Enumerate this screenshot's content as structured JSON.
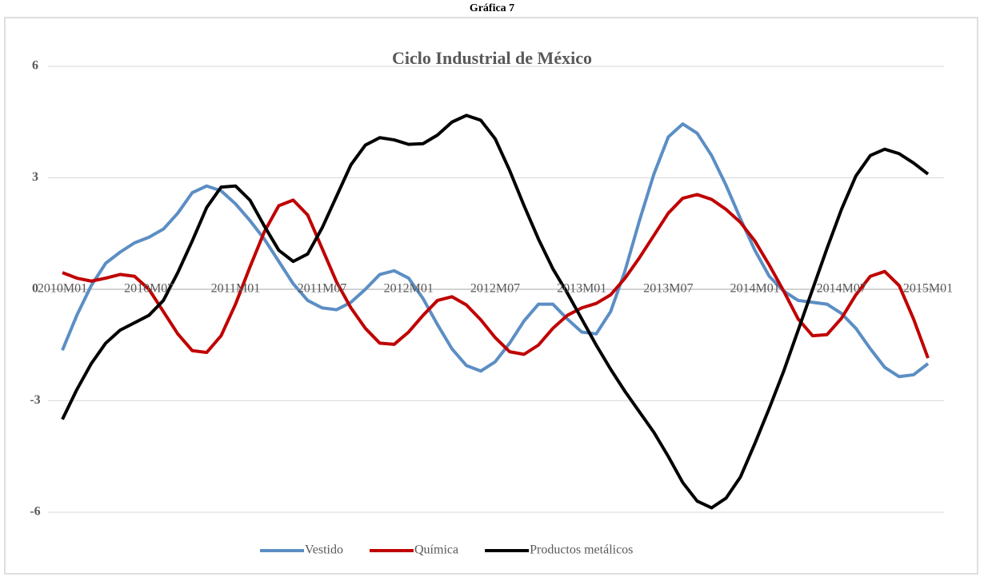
{
  "chart_data": {
    "type": "line",
    "header": "Gráfica 7",
    "title": "Ciclo Industrial de México",
    "categories": [
      "2010M01",
      null,
      null,
      null,
      null,
      null,
      "2010M07",
      null,
      null,
      null,
      null,
      null,
      "2011M01",
      null,
      null,
      null,
      null,
      null,
      "2011M07",
      null,
      null,
      null,
      null,
      null,
      "2012M01",
      null,
      null,
      null,
      null,
      null,
      "2012M07",
      null,
      null,
      null,
      null,
      null,
      "2013M01",
      null,
      null,
      null,
      null,
      null,
      "2013M07",
      null,
      null,
      null,
      null,
      null,
      "2014M01",
      null,
      null,
      null,
      null,
      null,
      "2014M07",
      null,
      null,
      null,
      null,
      null,
      "2015M01"
    ],
    "ylim": [
      -6,
      6
    ],
    "yticks": [
      6,
      3,
      0,
      -3,
      -6
    ],
    "grid": true,
    "legend": "bottom",
    "series": [
      {
        "name": "Vestido",
        "color": "#5b8ec4",
        "values": [
          -1.64,
          -0.7,
          0.1,
          0.7,
          1.0,
          1.25,
          1.4,
          1.62,
          2.05,
          2.6,
          2.78,
          2.65,
          2.3,
          1.85,
          1.35,
          0.75,
          0.15,
          -0.3,
          -0.5,
          -0.55,
          -0.35,
          0.0,
          0.4,
          0.5,
          0.3,
          -0.25,
          -0.95,
          -1.6,
          -2.05,
          -2.2,
          -1.95,
          -1.45,
          -0.85,
          -0.4,
          -0.4,
          -0.8,
          -1.15,
          -1.2,
          -0.6,
          0.5,
          1.85,
          3.1,
          4.1,
          4.45,
          4.2,
          3.6,
          2.8,
          1.9,
          1.05,
          0.35,
          -0.05,
          -0.3,
          -0.35,
          -0.4,
          -0.65,
          -1.05,
          -1.6,
          -2.1,
          -2.35,
          -2.3,
          -2.0
        ]
      },
      {
        "name": "Química",
        "color": "#c00000",
        "values": [
          0.45,
          0.3,
          0.22,
          0.3,
          0.4,
          0.35,
          0.0,
          -0.6,
          -1.2,
          -1.65,
          -1.7,
          -1.25,
          -0.4,
          0.6,
          1.55,
          2.25,
          2.4,
          2.0,
          1.1,
          0.2,
          -0.5,
          -1.05,
          -1.45,
          -1.48,
          -1.15,
          -0.7,
          -0.3,
          -0.2,
          -0.42,
          -0.82,
          -1.3,
          -1.68,
          -1.75,
          -1.5,
          -1.05,
          -0.7,
          -0.5,
          -0.38,
          -0.15,
          0.3,
          0.85,
          1.45,
          2.05,
          2.45,
          2.55,
          2.42,
          2.15,
          1.8,
          1.3,
          0.65,
          -0.05,
          -0.8,
          -1.25,
          -1.22,
          -0.78,
          -0.15,
          0.35,
          0.48,
          0.1,
          -0.8,
          -1.85
        ]
      },
      {
        "name": "Productos metálicos",
        "color": "#000000",
        "values": [
          -3.5,
          -2.7,
          -2.0,
          -1.45,
          -1.1,
          -0.9,
          -0.7,
          -0.3,
          0.45,
          1.3,
          2.2,
          2.75,
          2.78,
          2.4,
          1.7,
          1.05,
          0.75,
          0.95,
          1.65,
          2.5,
          3.35,
          3.88,
          4.08,
          4.02,
          3.9,
          3.92,
          4.15,
          4.5,
          4.68,
          4.55,
          4.05,
          3.2,
          2.25,
          1.35,
          0.55,
          -0.1,
          -0.8,
          -1.5,
          -2.15,
          -2.75,
          -3.3,
          -3.85,
          -4.5,
          -5.2,
          -5.7,
          -5.88,
          -5.62,
          -5.05,
          -4.15,
          -3.2,
          -2.2,
          -1.1,
          0.0,
          1.1,
          2.15,
          3.05,
          3.6,
          3.77,
          3.65,
          3.4,
          3.1
        ]
      }
    ]
  }
}
